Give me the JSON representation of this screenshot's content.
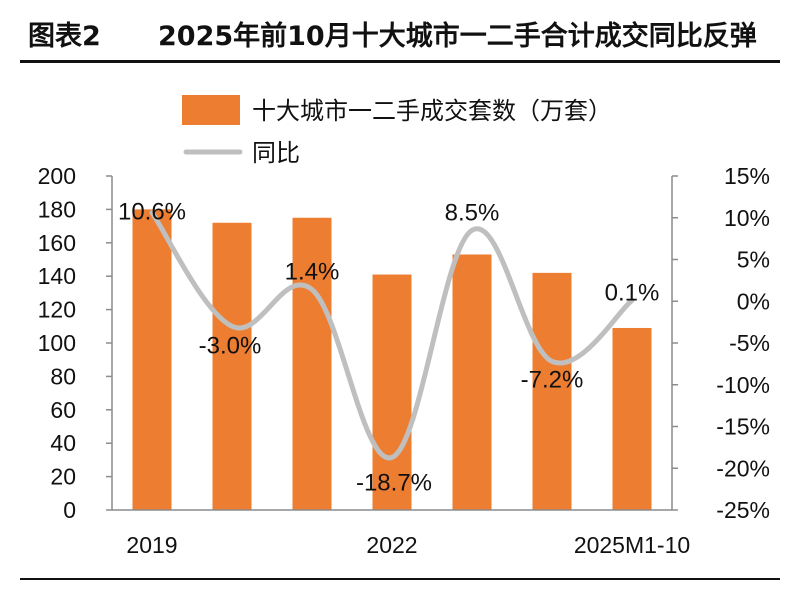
{
  "header": {
    "figure_label": "图表2",
    "title": "2025年前10月十大城市一二手合计成交同比反弹"
  },
  "chart_data": {
    "type": "bar",
    "categories": [
      "2019",
      "",
      "",
      "2022",
      "",
      "",
      "2025M1-10"
    ],
    "series": [
      {
        "name": "十大城市一二手成交套数（万套）",
        "type": "bar",
        "axis": "left",
        "values": [
          180,
          172,
          175,
          141,
          153,
          142,
          109
        ],
        "color": "#ED7D31"
      },
      {
        "name": "同比",
        "type": "line",
        "axis": "right",
        "values": [
          10.6,
          -3.0,
          1.4,
          -18.7,
          8.5,
          -7.2,
          0.1
        ],
        "labels": [
          "10.6%",
          "-3.0%",
          "1.4%",
          "-18.7%",
          "8.5%",
          "-7.2%",
          "0.1%"
        ],
        "color": "#BFBFBF"
      }
    ],
    "y_left": {
      "range": [
        0,
        200
      ],
      "ticks": [
        "0",
        "20",
        "40",
        "60",
        "80",
        "100",
        "120",
        "140",
        "160",
        "180",
        "200"
      ]
    },
    "y_right": {
      "range": [
        -25,
        15
      ],
      "ticks": [
        "-25%",
        "-20%",
        "-15%",
        "-10%",
        "-5%",
        "0%",
        "5%",
        "10%",
        "15%"
      ]
    },
    "x_tick_labels": [
      "2019",
      "2022",
      "2025M1-10"
    ],
    "grid": false,
    "legend_position": "top"
  }
}
